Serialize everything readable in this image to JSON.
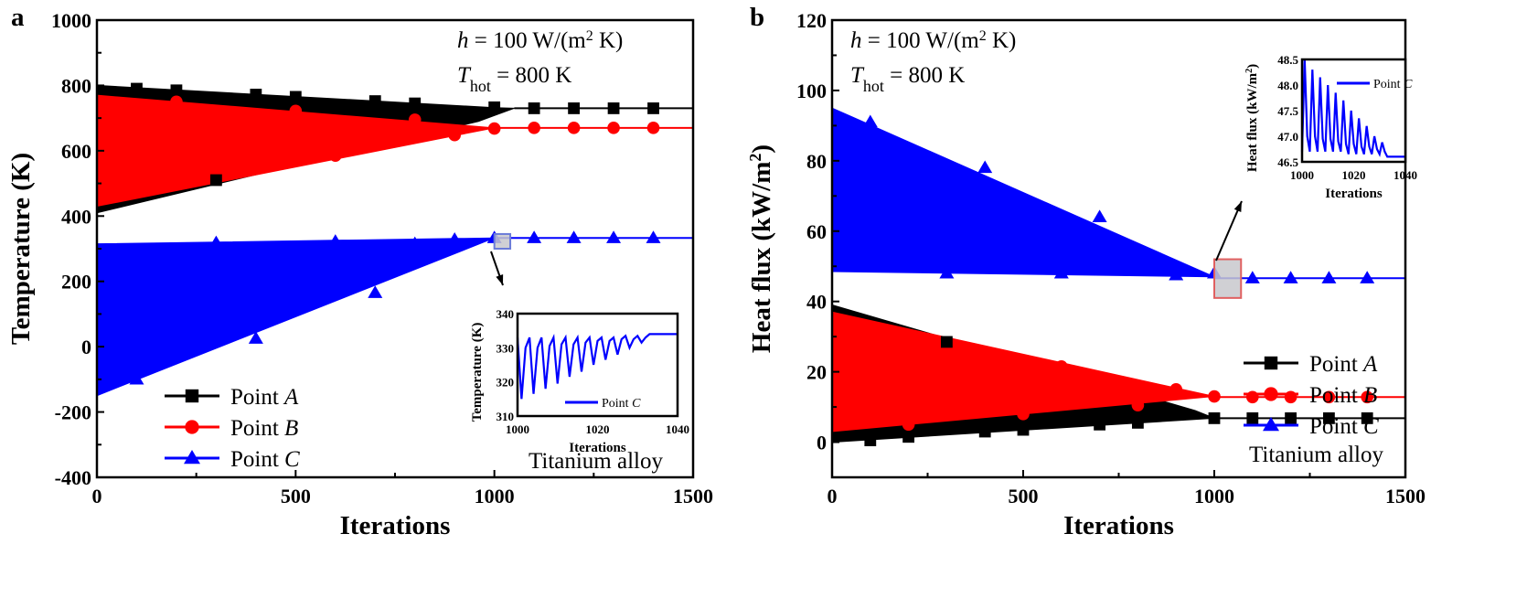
{
  "chart_data": [
    {
      "panel": "a",
      "type": "line",
      "xlabel": "Iterations",
      "ylabel": "Temperature (K)",
      "xlim": [
        0,
        1500
      ],
      "ylim": [
        -400,
        1000
      ],
      "xticks": [
        "0",
        "500",
        "1000",
        "1500"
      ],
      "yticks": [
        "-400",
        "-200",
        "0",
        "200",
        "400",
        "600",
        "800",
        "1000"
      ],
      "annotation": {
        "h_symbol": "h",
        "h_text": " = 100 W/(m",
        "h_sup": "2",
        "h_end": " K)",
        "t_symbol": "T",
        "t_sub": "hot",
        "t_text": " = 800 K"
      },
      "material": "Titanium alloy",
      "legend_position": "bottom-left",
      "series": [
        {
          "name": "Point A",
          "letter": "A",
          "label": "Point ",
          "color": "#000000",
          "marker": "square",
          "final": 730,
          "upper": [
            [
              0,
              800
            ],
            [
              1000,
              732
            ],
            [
              1050,
              730
            ]
          ],
          "lower": [
            [
              1050,
              730
            ],
            [
              960,
              690
            ],
            [
              0,
              410
            ]
          ],
          "markers": [
            [
              100,
              790
            ],
            [
              200,
              785
            ],
            [
              300,
              510
            ],
            [
              400,
              772
            ],
            [
              500,
              765
            ],
            [
              700,
              752
            ],
            [
              800,
              745
            ],
            [
              1000,
              733
            ],
            [
              1100,
              730
            ],
            [
              1200,
              730
            ],
            [
              1300,
              730
            ],
            [
              1400,
              730
            ]
          ]
        },
        {
          "name": "Point B",
          "letter": "B",
          "label": "Point ",
          "color": "#ff0000",
          "marker": "circle",
          "final": 670,
          "upper": [
            [
              0,
              770
            ],
            [
              1000,
              670
            ]
          ],
          "lower": [
            [
              1000,
              670
            ],
            [
              0,
              430
            ]
          ],
          "markers": [
            [
              200,
              750
            ],
            [
              500,
              722
            ],
            [
              600,
              585
            ],
            [
              800,
              695
            ],
            [
              900,
              648
            ],
            [
              1000,
              668
            ],
            [
              1100,
              670
            ],
            [
              1200,
              670
            ],
            [
              1300,
              670
            ],
            [
              1400,
              670
            ]
          ]
        },
        {
          "name": "Point C",
          "letter": "C",
          "label": "Point ",
          "color": "#0000ff",
          "marker": "triangle",
          "final": 333,
          "upper": [
            [
              0,
              315
            ],
            [
              1000,
              333
            ]
          ],
          "lower": [
            [
              1000,
              333
            ],
            [
              0,
              -150
            ]
          ],
          "spike": [
            [
              0,
              333
            ],
            [
              0,
              -400
            ]
          ],
          "markers": [
            [
              100,
              -100
            ],
            [
              300,
              318
            ],
            [
              400,
              25
            ],
            [
              600,
              322
            ],
            [
              700,
              165
            ],
            [
              800,
              315
            ],
            [
              900,
              328
            ],
            [
              1000,
              333
            ],
            [
              1100,
              333
            ],
            [
              1200,
              333
            ],
            [
              1300,
              333
            ],
            [
              1400,
              333
            ]
          ]
        }
      ],
      "inset": {
        "xlabel": "Iterations",
        "ylabel": "Temperature (K)",
        "xlim": [
          1000,
          1040
        ],
        "ylim": [
          310,
          340
        ],
        "xticks": [
          "1000",
          "1020",
          "1040"
        ],
        "yticks": [
          "310",
          "320",
          "330",
          "340"
        ],
        "legend": "Point ",
        "letter": "C",
        "color": "#0000ff",
        "x": [
          1000,
          1001,
          1002,
          1003,
          1004,
          1005,
          1006,
          1007,
          1008,
          1009,
          1010,
          1011,
          1012,
          1013,
          1014,
          1015,
          1016,
          1017,
          1018,
          1019,
          1020,
          1021,
          1022,
          1023,
          1024,
          1025,
          1026,
          1027,
          1028,
          1029,
          1030,
          1031,
          1032,
          1033,
          1034,
          1040
        ],
        "y": [
          333,
          315,
          330,
          333,
          316.5,
          330,
          333,
          318,
          330.5,
          333,
          319.5,
          331,
          333,
          321.5,
          331,
          333,
          323,
          331.5,
          333,
          325,
          332,
          333,
          326.5,
          332,
          333,
          328,
          332.5,
          333.5,
          330,
          332.5,
          333.5,
          331.5,
          333,
          334,
          334,
          334
        ]
      },
      "highlight_color": "#6a7bd8"
    },
    {
      "panel": "b",
      "type": "line",
      "xlabel": "Iterations",
      "ylabel": "Heat flux (kW/m",
      "ylabel_sup": "2",
      "ylabel_end": ")",
      "xlim": [
        0,
        1500
      ],
      "ylim": [
        -10,
        120
      ],
      "xticks": [
        "0",
        "500",
        "1000",
        "1500"
      ],
      "yticks": [
        "0",
        "20",
        "40",
        "60",
        "80",
        "100",
        "120"
      ],
      "annotation": {
        "h_symbol": "h",
        "h_text": " = 100 W/(m",
        "h_sup": "2",
        "h_end": " K)",
        "t_symbol": "T",
        "t_sub": "hot",
        "t_text": " = 800 K"
      },
      "material": "Titanium alloy",
      "legend_position": "bottom-right",
      "series": [
        {
          "name": "Point A",
          "letter": "A",
          "label": "Point ",
          "color": "#000000",
          "marker": "square",
          "final": 6.8,
          "upper": [
            [
              0,
              39
            ],
            [
              950,
              9
            ],
            [
              1000,
              6.8
            ]
          ],
          "lower": [
            [
              1000,
              6.8
            ],
            [
              0,
              0
            ]
          ],
          "markers": [
            [
              100,
              0.5
            ],
            [
              200,
              1.5
            ],
            [
              300,
              28.5
            ],
            [
              400,
              3
            ],
            [
              500,
              3.5
            ],
            [
              700,
              5
            ],
            [
              800,
              5.5
            ],
            [
              1000,
              6.8
            ],
            [
              1100,
              6.8
            ],
            [
              1200,
              6.8
            ],
            [
              1300,
              6.8
            ],
            [
              1400,
              6.8
            ]
          ]
        },
        {
          "name": "Point B",
          "letter": "B",
          "label": "Point ",
          "color": "#ff0000",
          "marker": "circle",
          "final": 12.8,
          "upper": [
            [
              0,
              37
            ],
            [
              1000,
              13
            ]
          ],
          "lower": [
            [
              1000,
              13
            ],
            [
              0,
              3
            ]
          ],
          "markers": [
            [
              200,
              5
            ],
            [
              500,
              8
            ],
            [
              600,
              21.5
            ],
            [
              800,
              10.5
            ],
            [
              900,
              15
            ],
            [
              1000,
              13
            ],
            [
              1100,
              12.8
            ],
            [
              1200,
              12.8
            ],
            [
              1300,
              12.8
            ],
            [
              1400,
              12.8
            ]
          ]
        },
        {
          "name": "Point C",
          "letter": "C",
          "label": "Point ",
          "color": "#0000ff",
          "marker": "triangle",
          "final": 46.6,
          "upper": [
            [
              0,
              95
            ],
            [
              1000,
              47
            ]
          ],
          "lower": [
            [
              1000,
              47
            ],
            [
              0,
              48.5
            ]
          ],
          "spike": [
            [
              0,
              48
            ],
            [
              0,
              120
            ]
          ],
          "markers": [
            [
              100,
              91
            ],
            [
              300,
              48
            ],
            [
              400,
              78
            ],
            [
              600,
              48
            ],
            [
              700,
              64
            ],
            [
              900,
              47.5
            ],
            [
              1000,
              48
            ],
            [
              1100,
              46.6
            ],
            [
              1200,
              46.6
            ],
            [
              1300,
              46.6
            ],
            [
              1400,
              46.6
            ]
          ]
        }
      ],
      "inset": {
        "xlabel": "Iterations",
        "ylabel": "Heat flux (kW/m",
        "ylabel_sup": "2",
        "ylabel_end": ")",
        "xlim": [
          1000,
          1040
        ],
        "ylim": [
          46.5,
          48.5
        ],
        "xticks": [
          "1000",
          "1020",
          "1040"
        ],
        "yticks": [
          "46.5",
          "47.0",
          "47.5",
          "48.0",
          "48.5"
        ],
        "legend": "Point ",
        "letter": "C",
        "color": "#0000ff",
        "x": [
          1000,
          1001,
          1002,
          1003,
          1004,
          1005,
          1006,
          1007,
          1008,
          1009,
          1010,
          1011,
          1012,
          1013,
          1014,
          1015,
          1016,
          1017,
          1018,
          1019,
          1020,
          1021,
          1022,
          1023,
          1024,
          1025,
          1026,
          1027,
          1028,
          1029,
          1030,
          1031,
          1032,
          1033,
          1034,
          1040
        ],
        "y": [
          46.7,
          48.5,
          47.0,
          46.7,
          48.3,
          47.0,
          46.7,
          48.15,
          46.95,
          46.7,
          48.0,
          46.95,
          46.7,
          47.85,
          46.9,
          46.7,
          47.7,
          46.85,
          46.65,
          47.5,
          46.85,
          46.65,
          47.35,
          46.8,
          46.65,
          47.2,
          46.8,
          46.65,
          47.0,
          46.75,
          46.65,
          46.88,
          46.7,
          46.6,
          46.6,
          46.6
        ]
      },
      "highlight_color": "#e06060"
    }
  ]
}
